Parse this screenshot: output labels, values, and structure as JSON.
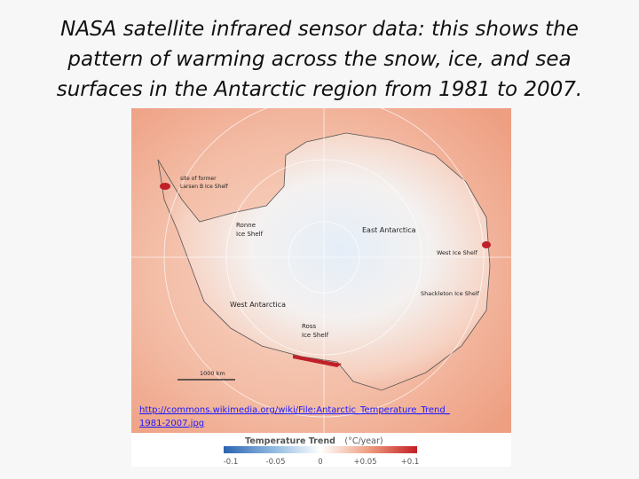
{
  "slide": {
    "title": "NASA satellite infrared sensor data: this shows the pattern of warming across the snow, ice, and sea surfaces in the Antarctic region from 1981 to 2007.",
    "map": {
      "labels": [
        {
          "lines": [
            "site of former",
            "Larsen B Ice Shelf"
          ]
        },
        {
          "lines": [
            "Ronne",
            "Ice Shelf"
          ]
        },
        {
          "lines": [
            "East Antarctica"
          ]
        },
        {
          "lines": [
            "West Ice Shelf"
          ]
        },
        {
          "lines": [
            "Shackleton Ice Shelf"
          ]
        },
        {
          "lines": [
            "West Antarctica"
          ]
        },
        {
          "lines": [
            "Ross",
            "Ice Shelf"
          ]
        },
        {
          "lines": [
            "1000 km"
          ]
        }
      ],
      "link": "http://commons.wikimedia.org/wiki/File:Antarctic_Temperature_Trend_1981-2007.jpg",
      "legend": {
        "title": "Temperature Trend",
        "unit": "(°C/year)",
        "ticks": [
          "-0.1",
          "-0.05",
          "0",
          "+0.05",
          "+0.1"
        ]
      }
    }
  }
}
